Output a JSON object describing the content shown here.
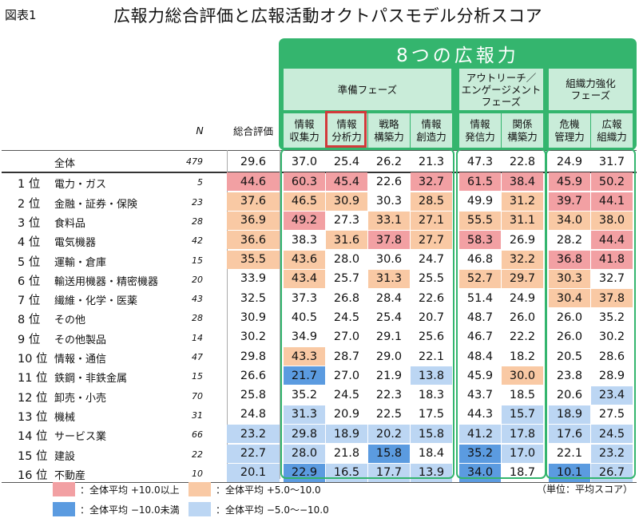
{
  "figure_label": "図表1",
  "title": "広報力総合評価と広報活動オクトパスモデル分析スコア",
  "group_title": "8つの広報力",
  "phases": [
    {
      "label": "準備フェーズ"
    },
    {
      "label": "アウトリーチ／\nエンゲージメント\nフェーズ"
    },
    {
      "label": "組織力強化\nフェーズ"
    }
  ],
  "headers": {
    "n": "N",
    "overall": "総合評価",
    "capabilities": [
      "情報\n収集力",
      "情報\n分析力",
      "戦略\n構築力",
      "情報\n創造力",
      "情報\n発信力",
      "関係\n構築力",
      "危機\n管理力",
      "広報\n組織力"
    ]
  },
  "total_row": {
    "label": "全体",
    "n": "479",
    "overall": "29.6",
    "scores": [
      "37.0",
      "25.4",
      "26.2",
      "21.3",
      "47.3",
      "22.8",
      "24.9",
      "31.7"
    ]
  },
  "rows": [
    {
      "rank": "1 位",
      "industry": "電力・ガス",
      "n": "5",
      "overall": "44.6",
      "scores": [
        "60.3",
        "45.4",
        "22.6",
        "32.7",
        "61.5",
        "38.4",
        "45.9",
        "50.2"
      ]
    },
    {
      "rank": "2 位",
      "industry": "金融・証券・保険",
      "n": "23",
      "overall": "37.6",
      "scores": [
        "46.5",
        "30.9",
        "30.3",
        "28.5",
        "49.9",
        "31.2",
        "39.7",
        "44.1"
      ]
    },
    {
      "rank": "3 位",
      "industry": "食料品",
      "n": "28",
      "overall": "36.9",
      "scores": [
        "49.2",
        "27.3",
        "33.1",
        "27.1",
        "55.5",
        "31.1",
        "34.0",
        "38.0"
      ]
    },
    {
      "rank": "4 位",
      "industry": "電気機器",
      "n": "42",
      "overall": "36.6",
      "scores": [
        "38.3",
        "31.6",
        "37.8",
        "27.7",
        "58.3",
        "26.9",
        "28.2",
        "44.4"
      ]
    },
    {
      "rank": "5 位",
      "industry": "運輸・倉庫",
      "n": "15",
      "overall": "35.5",
      "scores": [
        "43.6",
        "28.0",
        "30.6",
        "24.7",
        "46.8",
        "32.2",
        "36.8",
        "41.8"
      ]
    },
    {
      "rank": "6 位",
      "industry": "輸送用機器・精密機器",
      "n": "20",
      "overall": "33.9",
      "scores": [
        "43.4",
        "25.7",
        "31.3",
        "25.5",
        "52.7",
        "29.7",
        "30.3",
        "32.7"
      ]
    },
    {
      "rank": "7 位",
      "industry": "繊維・化学・医薬",
      "n": "43",
      "overall": "32.5",
      "scores": [
        "37.3",
        "26.8",
        "28.4",
        "22.6",
        "51.4",
        "24.9",
        "30.4",
        "37.8"
      ]
    },
    {
      "rank": "8 位",
      "industry": "その他",
      "n": "28",
      "overall": "30.9",
      "scores": [
        "40.5",
        "24.5",
        "25.4",
        "20.7",
        "48.7",
        "26.0",
        "26.0",
        "35.2"
      ]
    },
    {
      "rank": "9 位",
      "industry": "その他製品",
      "n": "14",
      "overall": "30.2",
      "scores": [
        "34.9",
        "27.0",
        "29.1",
        "25.6",
        "46.7",
        "22.2",
        "26.0",
        "30.2"
      ]
    },
    {
      "rank": "10 位",
      "industry": "情報・通信",
      "n": "47",
      "overall": "29.8",
      "scores": [
        "43.3",
        "28.7",
        "29.0",
        "22.1",
        "48.4",
        "18.2",
        "20.5",
        "28.6"
      ]
    },
    {
      "rank": "11 位",
      "industry": "鉄鋼・非鉄金属",
      "n": "15",
      "overall": "26.6",
      "scores": [
        "21.7",
        "27.0",
        "21.9",
        "13.8",
        "45.9",
        "30.0",
        "23.8",
        "28.9"
      ]
    },
    {
      "rank": "12 位",
      "industry": "卸売・小売",
      "n": "70",
      "overall": "25.8",
      "scores": [
        "35.2",
        "24.5",
        "22.3",
        "18.3",
        "43.7",
        "18.5",
        "20.6",
        "23.4"
      ]
    },
    {
      "rank": "13 位",
      "industry": "機械",
      "n": "31",
      "overall": "24.8",
      "scores": [
        "31.3",
        "20.9",
        "22.5",
        "17.5",
        "44.3",
        "15.7",
        "18.9",
        "27.5"
      ]
    },
    {
      "rank": "14 位",
      "industry": "サービス業",
      "n": "66",
      "overall": "23.2",
      "scores": [
        "29.8",
        "18.9",
        "20.2",
        "15.8",
        "41.2",
        "17.8",
        "17.6",
        "24.5"
      ]
    },
    {
      "rank": "15 位",
      "industry": "建設",
      "n": "22",
      "overall": "22.7",
      "scores": [
        "28.0",
        "21.8",
        "15.8",
        "18.4",
        "35.2",
        "17.0",
        "22.1",
        "23.2"
      ]
    },
    {
      "rank": "16 位",
      "industry": "不動産",
      "n": "10",
      "overall": "20.1",
      "scores": [
        "22.9",
        "16.5",
        "17.7",
        "13.9",
        "34.0",
        "18.7",
        "10.1",
        "26.7"
      ]
    }
  ],
  "legend": [
    {
      "label": "：全体平均 +10.0以上",
      "color": "#f2a0a3"
    },
    {
      "label": "：全体平均 +5.0〜10.0",
      "color": "#f9c9a4"
    },
    {
      "label": "：全体平均 −10.0未満",
      "color": "#5b9be0"
    },
    {
      "label": "：全体平均 −5.0〜−10.0",
      "color": "#bcd6f3"
    }
  ],
  "unit_note": "（単位：平均スコア）"
}
